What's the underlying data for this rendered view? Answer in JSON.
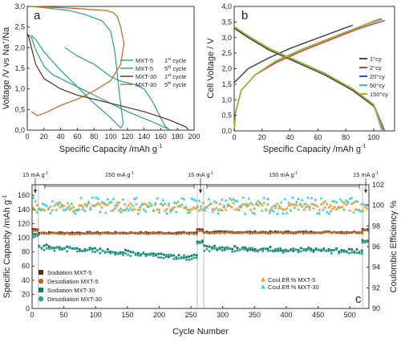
{
  "chart_data": [
    {
      "id": "a",
      "type": "line",
      "panel_label": "a",
      "xlabel": "Specific Capacity /mAh g",
      "xlabel_sup": "-1",
      "ylabel": "Voltage /V vs Na",
      "ylabel_tail": "/Na",
      "xlim": [
        0,
        200
      ],
      "ylim": [
        0,
        3.0
      ],
      "xticks": [
        "0",
        "20",
        "40",
        "60",
        "80",
        "100",
        "120",
        "140",
        "160",
        "180",
        "200"
      ],
      "yticks": [
        "0,0",
        "0,5",
        "1,0",
        "1,5",
        "2,0",
        "2,5",
        "3,0"
      ],
      "legend_position": "right",
      "series": [
        {
          "name": "MXT-5",
          "cycle": "1",
          "color": "#2aa08d",
          "x": [
            0,
            2,
            5,
            10,
            20,
            30,
            60,
            90,
            120,
            150,
            170,
            165,
            160,
            155,
            150,
            145,
            140,
            130,
            120,
            110,
            100,
            90,
            80,
            60,
            45
          ],
          "y": [
            2.25,
            2.3,
            2.25,
            1.95,
            1.55,
            1.35,
            1.05,
            0.75,
            0.45,
            0.2,
            0.02,
            0.1,
            0.3,
            0.5,
            0.7,
            0.85,
            1.0,
            1.1,
            1.15,
            1.2,
            1.3,
            1.45,
            1.6,
            1.8,
            2.0
          ]
        },
        {
          "name": "MXT-5",
          "cycle": "5",
          "color": "#2aa08d",
          "x": [
            5,
            10,
            20,
            40,
            60,
            80,
            100,
            112,
            115,
            110,
            105,
            100,
            90,
            70,
            50,
            30,
            15,
            5,
            0
          ],
          "y": [
            2.3,
            2.2,
            1.9,
            1.45,
            1.05,
            0.65,
            0.3,
            0.05,
            0.15,
            0.95,
            1.9,
            2.4,
            2.65,
            2.8,
            2.9,
            2.95,
            2.98,
            3.0,
            3.0
          ],
          "dir": "discharge-then-charge"
        },
        {
          "name": "MXT-30",
          "cycle": "1",
          "color": "#5a2d1a",
          "x": [
            0,
            2,
            5,
            10,
            20,
            40,
            60,
            100,
            140,
            170,
            190,
            193
          ],
          "y": [
            2.35,
            2.25,
            2.0,
            1.6,
            1.25,
            1.0,
            0.85,
            0.65,
            0.45,
            0.25,
            0.08,
            0.02
          ]
        },
        {
          "name": "MXT-30",
          "cycle": "5",
          "color": "#c0641b",
          "x": [
            5,
            12,
            25,
            40,
            60,
            80,
            100,
            112,
            116,
            112,
            108,
            103,
            95,
            80,
            60,
            40,
            20,
            5
          ],
          "y": [
            0.45,
            0.35,
            0.45,
            0.6,
            0.75,
            0.95,
            1.2,
            1.6,
            2.1,
            2.5,
            2.75,
            2.85,
            2.9,
            2.92,
            2.95,
            2.97,
            2.99,
            3.0
          ]
        }
      ],
      "legend": [
        {
          "name": "MXT-5",
          "cycle_label": "1",
          "suffix": " cycle",
          "color": "#2aa08d"
        },
        {
          "name": "MXT-5",
          "cycle_label": "5",
          "suffix": " cycle",
          "color": "#2aa08d"
        },
        {
          "name": "MXT-30",
          "cycle_label": "1",
          "suffix": " cycle",
          "color": "#5a2d1a"
        },
        {
          "name": "MXT-30",
          "cycle_label": "5",
          "suffix": " cycle",
          "color": "#c0641b"
        }
      ]
    },
    {
      "id": "b",
      "type": "line",
      "panel_label": "b",
      "xlabel": "Specific Capacity /mAh g",
      "xlabel_sup": "-1",
      "ylabel": "Cell Voltage / V",
      "xlim": [
        0,
        115
      ],
      "ylim": [
        0,
        4.0
      ],
      "xticks": [
        "0",
        "20",
        "40",
        "60",
        "80",
        "100"
      ],
      "yticks": [
        "0,0",
        "0,5",
        "1,0",
        "1,5",
        "2,0",
        "2,5",
        "3,0",
        "3,5",
        "4,0"
      ],
      "legend_position": "top-right",
      "series": [
        {
          "name": "1°cy",
          "color": "#444444",
          "charge": {
            "x": [
              0,
              10,
              25,
              40,
              55,
              70,
              85
            ],
            "y": [
              1.55,
              2.0,
              2.35,
              2.65,
              2.9,
              3.15,
              3.4
            ]
          },
          "discharge": {
            "x": [
              0,
              10,
              25,
              45,
              65,
              85,
              100,
              108
            ],
            "y": [
              3.3,
              3.0,
              2.6,
              2.2,
              1.8,
              1.3,
              0.8,
              0.0
            ]
          }
        },
        {
          "name": "2°cy",
          "color": "#d63a3a",
          "charge": {
            "x": [
              0,
              1,
              5,
              15,
              30,
              50,
              70,
              90,
              108
            ],
            "y": [
              0.0,
              0.6,
              1.3,
              1.8,
              2.2,
              2.6,
              2.95,
              3.3,
              3.55
            ]
          },
          "discharge": {
            "x": [
              0,
              10,
              25,
              45,
              65,
              85,
              100,
              108
            ],
            "y": [
              3.35,
              3.05,
              2.65,
              2.25,
              1.85,
              1.35,
              0.85,
              0.0
            ]
          }
        },
        {
          "name": "20°cy",
          "color": "#2a4fd6",
          "charge": {
            "x": [
              0,
              1,
              5,
              15,
              30,
              50,
              70,
              90,
              106
            ],
            "y": [
              0.0,
              0.6,
              1.3,
              1.8,
              2.25,
              2.65,
              3.0,
              3.35,
              3.6
            ]
          },
          "discharge": {
            "x": [
              0,
              10,
              25,
              45,
              65,
              85,
              100,
              107
            ],
            "y": [
              3.35,
              3.05,
              2.65,
              2.25,
              1.85,
              1.35,
              0.85,
              0.0
            ]
          }
        },
        {
          "name": "50°cy",
          "color": "#33b5e5",
          "charge": {
            "x": [
              0,
              1,
              5,
              15,
              30,
              50,
              70,
              90,
              105
            ],
            "y": [
              0.0,
              0.6,
              1.3,
              1.8,
              2.25,
              2.65,
              3.0,
              3.35,
              3.6
            ]
          },
          "discharge": {
            "x": [
              0,
              10,
              25,
              45,
              65,
              85,
              100,
              107
            ],
            "y": [
              3.35,
              3.05,
              2.65,
              2.25,
              1.85,
              1.35,
              0.85,
              0.0
            ]
          }
        },
        {
          "name": "150°cy",
          "color": "#a6b51c",
          "charge": {
            "x": [
              0,
              1,
              5,
              15,
              30,
              50,
              70,
              90,
              104
            ],
            "y": [
              0.0,
              0.6,
              1.3,
              1.8,
              2.25,
              2.65,
              3.0,
              3.35,
              3.6
            ]
          },
          "discharge": {
            "x": [
              0,
              10,
              25,
              45,
              65,
              85,
              100,
              106
            ],
            "y": [
              3.35,
              3.05,
              2.65,
              2.25,
              1.85,
              1.35,
              0.85,
              0.0
            ]
          }
        }
      ]
    },
    {
      "id": "c",
      "type": "scatter",
      "panel_label": "c",
      "xlabel": "Cycle Number",
      "ylabel": "Specific Capacity /mAh g",
      "ylabel_sup": "-1",
      "ylabel_right": "Coulombic Efficiency %",
      "xlim": [
        0,
        530
      ],
      "ylim": [
        0,
        175
      ],
      "ylim_right": [
        90,
        102
      ],
      "xticks": [
        "0",
        "50",
        "100",
        "150",
        "200",
        "250",
        "300",
        "350",
        "400",
        "450",
        "500"
      ],
      "yticks": [
        "0",
        "20",
        "40",
        "60",
        "80",
        "100",
        "120",
        "140",
        "160"
      ],
      "yticks_right": [
        "90",
        "92",
        "94",
        "96",
        "98",
        "100",
        "102"
      ],
      "rate_annotations": [
        {
          "text": "15 mA g",
          "sup": "-1",
          "x_start": 0,
          "x_end": 10
        },
        {
          "text": "150 mA g",
          "sup": "-1",
          "x_start": 20,
          "x_end": 255
        },
        {
          "text": "15 mA g",
          "sup": "-1",
          "x_start": 260,
          "x_end": 270
        },
        {
          "text": "150 mA g",
          "sup": "-1",
          "x_start": 275,
          "x_end": 515
        },
        {
          "text": "15 mA g",
          "sup": "-1",
          "x_start": 520,
          "x_end": 530
        }
      ],
      "series": [
        {
          "name": "Sodiation MXT-5",
          "color": "#5a2d1a",
          "marker": "square",
          "axis": "left",
          "segments": [
            {
              "x0": 1,
              "x1": 10,
              "y": 112
            },
            {
              "x0": 11,
              "x1": 259,
              "y": 107
            },
            {
              "x0": 260,
              "x1": 270,
              "y": 112
            },
            {
              "x0": 271,
              "x1": 519,
              "y": 108
            },
            {
              "x0": 520,
              "x1": 530,
              "y": 112
            }
          ]
        },
        {
          "name": "Desodiation MXT-5",
          "color": "#c0641b",
          "marker": "circle",
          "axis": "left",
          "segments": [
            {
              "x0": 1,
              "x1": 10,
              "y": 110
            },
            {
              "x0": 11,
              "x1": 259,
              "y": 106
            },
            {
              "x0": 260,
              "x1": 270,
              "y": 110
            },
            {
              "x0": 271,
              "x1": 519,
              "y": 107
            },
            {
              "x0": 520,
              "x1": 530,
              "y": 110
            }
          ]
        },
        {
          "name": "Sodiation MXT-30",
          "color": "#0e7a6b",
          "marker": "square",
          "axis": "left",
          "segments": [
            {
              "x0": 1,
              "x1": 10,
              "y": 105
            },
            {
              "x0": 11,
              "x1": 259,
              "y": 88,
              "y_end": 73
            },
            {
              "x0": 260,
              "x1": 270,
              "y": 95
            },
            {
              "x0": 271,
              "x1": 519,
              "y": 86,
              "y_end": 82
            },
            {
              "x0": 520,
              "x1": 530,
              "y": 96
            }
          ]
        },
        {
          "name": "Desodiation MXT-30",
          "color": "#2aa08d",
          "marker": "circle",
          "axis": "left",
          "segments": [
            {
              "x0": 1,
              "x1": 10,
              "y": 103
            },
            {
              "x0": 11,
              "x1": 259,
              "y": 86,
              "y_end": 71
            },
            {
              "x0": 260,
              "x1": 270,
              "y": 93
            },
            {
              "x0": 271,
              "x1": 519,
              "y": 84,
              "y_end": 80
            },
            {
              "x0": 520,
              "x1": 530,
              "y": 94
            }
          ]
        },
        {
          "name": "Coul.Eff.% MXT-5",
          "color": "#f39c2b",
          "marker": "triangle",
          "axis": "right",
          "value": 99.9,
          "spread": 0.8
        },
        {
          "name": "Coul.Eff.% MXT-30",
          "color": "#3fd1c8",
          "marker": "triangle",
          "axis": "right",
          "value": 100.0,
          "spread": 1.6
        }
      ]
    }
  ]
}
